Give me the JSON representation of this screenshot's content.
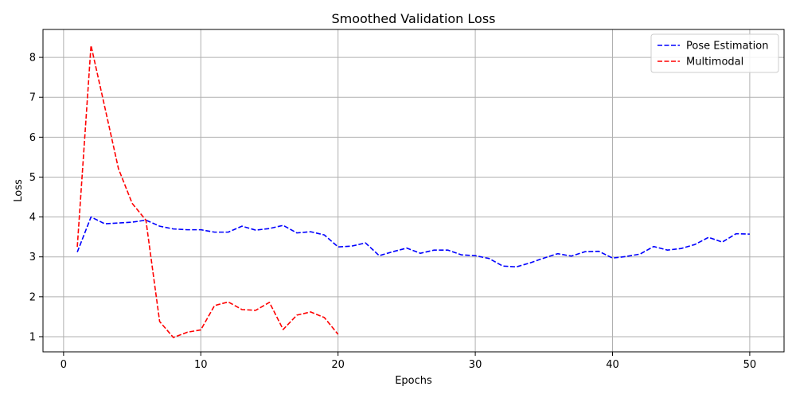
{
  "chart_data": {
    "type": "line",
    "title": "Smoothed Validation Loss",
    "xlabel": "Epochs",
    "ylabel": "Loss",
    "xlim": [
      -1.5,
      52.5
    ],
    "ylim": [
      0.62,
      8.7
    ],
    "xticks": [
      0,
      10,
      20,
      30,
      40,
      50
    ],
    "yticks": [
      1,
      2,
      3,
      4,
      5,
      6,
      7,
      8
    ],
    "grid": true,
    "legend_position": "top-right",
    "series": [
      {
        "name": "Pose Estimation",
        "color": "#0000ff",
        "x": [
          1,
          2,
          3,
          4,
          5,
          6,
          7,
          8,
          9,
          10,
          11,
          12,
          13,
          14,
          15,
          16,
          17,
          18,
          19,
          20,
          21,
          22,
          23,
          24,
          25,
          26,
          27,
          28,
          29,
          30,
          31,
          32,
          33,
          34,
          35,
          36,
          37,
          38,
          39,
          40,
          41,
          42,
          43,
          44,
          45,
          46,
          47,
          48,
          49,
          50
        ],
        "values": [
          3.12,
          4.0,
          3.83,
          3.85,
          3.87,
          3.92,
          3.77,
          3.7,
          3.68,
          3.68,
          3.62,
          3.62,
          3.77,
          3.67,
          3.71,
          3.79,
          3.6,
          3.63,
          3.55,
          3.25,
          3.27,
          3.35,
          3.03,
          3.13,
          3.22,
          3.09,
          3.17,
          3.17,
          3.05,
          3.03,
          2.96,
          2.77,
          2.75,
          2.85,
          2.97,
          3.08,
          3.02,
          3.13,
          3.14,
          2.97,
          3.01,
          3.07,
          3.26,
          3.17,
          3.21,
          3.31,
          3.49,
          3.37,
          3.58,
          3.57
        ]
      },
      {
        "name": "Multimodal",
        "color": "#ff0000",
        "x": [
          1,
          2,
          3,
          4,
          5,
          6,
          7,
          8,
          9,
          10,
          11,
          12,
          13,
          14,
          15,
          16,
          17,
          18,
          19,
          20
        ],
        "values": [
          3.25,
          8.3,
          6.76,
          5.21,
          4.34,
          3.92,
          1.38,
          0.98,
          1.11,
          1.17,
          1.78,
          1.87,
          1.68,
          1.66,
          1.86,
          1.18,
          1.54,
          1.62,
          1.48,
          1.06
        ]
      }
    ]
  }
}
